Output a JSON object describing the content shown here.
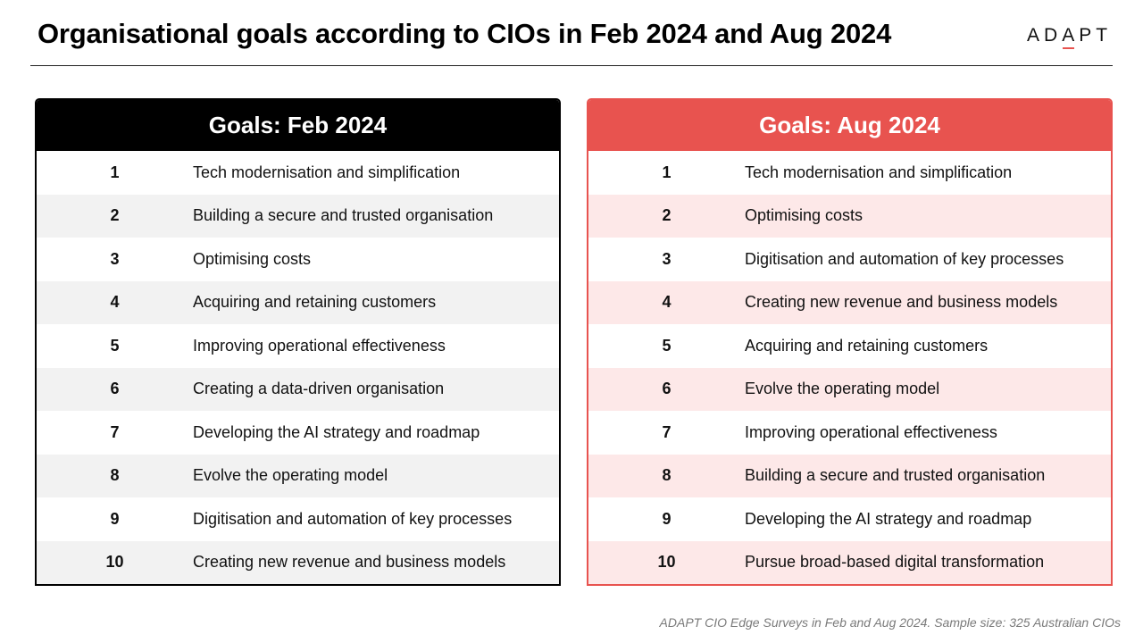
{
  "title": "Organisational goals according to CIOs in Feb 2024 and Aug 2024",
  "logo": {
    "pre": "AD",
    "mark": "A",
    "post": "PT"
  },
  "accent_color": "#e8534f",
  "panels": {
    "feb": {
      "heading": "Goals: Feb 2024",
      "rows": [
        {
          "rank": "1",
          "goal": "Tech modernisation and simplification"
        },
        {
          "rank": "2",
          "goal": "Building a secure and trusted organisation"
        },
        {
          "rank": "3",
          "goal": "Optimising costs"
        },
        {
          "rank": "4",
          "goal": "Acquiring and retaining customers"
        },
        {
          "rank": "5",
          "goal": "Improving operational effectiveness"
        },
        {
          "rank": "6",
          "goal": "Creating a data-driven organisation"
        },
        {
          "rank": "7",
          "goal": "Developing the AI strategy and roadmap"
        },
        {
          "rank": "8",
          "goal": "Evolve the operating model"
        },
        {
          "rank": "9",
          "goal": "Digitisation and automation of key processes"
        },
        {
          "rank": "10",
          "goal": "Creating new revenue and business models"
        }
      ]
    },
    "aug": {
      "heading": "Goals: Aug 2024",
      "rows": [
        {
          "rank": "1",
          "goal": "Tech modernisation and simplification"
        },
        {
          "rank": "2",
          "goal": "Optimising costs"
        },
        {
          "rank": "3",
          "goal": "Digitisation and automation of key processes"
        },
        {
          "rank": "4",
          "goal": "Creating new revenue and business models"
        },
        {
          "rank": "5",
          "goal": "Acquiring and retaining customers"
        },
        {
          "rank": "6",
          "goal": "Evolve the operating model"
        },
        {
          "rank": "7",
          "goal": "Improving operational effectiveness"
        },
        {
          "rank": "8",
          "goal": "Building a secure and trusted organisation"
        },
        {
          "rank": "9",
          "goal": "Developing the AI strategy and roadmap"
        },
        {
          "rank": "10",
          "goal": "Pursue broad-based digital transformation"
        }
      ]
    }
  },
  "source": "ADAPT CIO Edge Surveys in Feb and Aug 2024. Sample size: 325 Australian CIOs"
}
